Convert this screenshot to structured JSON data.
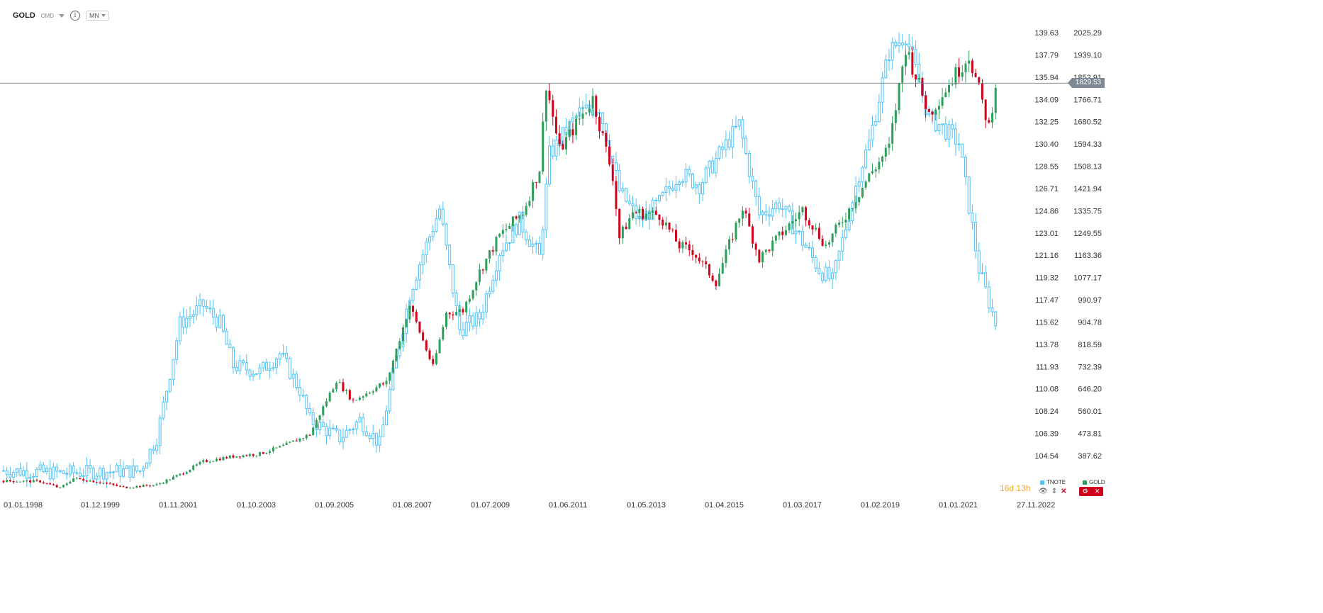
{
  "toolbar": {
    "symbol": "GOLD",
    "exchange": "CMD",
    "info_icon": "info-icon",
    "interval": "MN"
  },
  "price_tag": {
    "value": "1829.53"
  },
  "countdown": {
    "days": "16",
    "d": "d",
    "hours": "13",
    "h": "h"
  },
  "legends": {
    "tnote": {
      "label": "TNOTE",
      "color": "#4fc3f7"
    },
    "gold": {
      "label": "GOLD",
      "color": "#2e9e5b"
    }
  },
  "colors": {
    "up": "#2e9e5b",
    "down": "#d0021b",
    "tnote": "#4fc3f7",
    "gridline": "#7d8a96"
  },
  "chart_data": {
    "type": "candlestick",
    "x_tick_labels": [
      "01.01.1998",
      "01.12.1999",
      "01.11.2001",
      "01.10.2003",
      "01.09.2005",
      "01.08.2007",
      "01.07.2009",
      "01.06.2011",
      "01.05.2013",
      "01.04.2015",
      "01.03.2017",
      "01.02.2019",
      "01.01.2021",
      "27.11.2022"
    ],
    "left_axis": {
      "series": "TNOTE",
      "ticks": [
        "139.63",
        "137.79",
        "135.94",
        "134.09",
        "132.25",
        "130.40",
        "128.55",
        "126.71",
        "124.86",
        "123.01",
        "121.16",
        "119.32",
        "117.47",
        "115.62",
        "113.78",
        "111.93",
        "110.08",
        "108.24",
        "106.39",
        "104.54"
      ]
    },
    "right_axis": {
      "series": "GOLD",
      "ticks": [
        "2025.29",
        "1939.10",
        "1852.91",
        "1766.71",
        "1680.52",
        "1594.33",
        "1508.13",
        "1421.94",
        "1335.75",
        "1249.55",
        "1163.36",
        "1077.17",
        "990.97",
        "904.78",
        "818.59",
        "732.39",
        "646.20",
        "560.01",
        "473.81",
        "387.62"
      ]
    },
    "current_price": 1829.53,
    "series": [
      {
        "name": "GOLD",
        "axis": "right",
        "description": "monthly close levels",
        "points": [
          [
            "1998-01",
            290
          ],
          [
            "1998-12",
            288
          ],
          [
            "1999-06",
            262
          ],
          [
            "1999-10",
            300
          ],
          [
            "2000-06",
            285
          ],
          [
            "2001-01",
            265
          ],
          [
            "2001-06",
            270
          ],
          [
            "2001-11",
            275
          ],
          [
            "2002-06",
            315
          ],
          [
            "2003-01",
            365
          ],
          [
            "2003-10",
            385
          ],
          [
            "2004-06",
            395
          ],
          [
            "2005-01",
            425
          ],
          [
            "2005-09",
            470
          ],
          [
            "2006-05",
            680
          ],
          [
            "2006-10",
            600
          ],
          [
            "2007-06",
            660
          ],
          [
            "2007-08",
            670
          ],
          [
            "2008-03",
            970
          ],
          [
            "2008-10",
            730
          ],
          [
            "2009-02",
            940
          ],
          [
            "2009-07",
            950
          ],
          [
            "2009-12",
            1100
          ],
          [
            "2010-06",
            1240
          ],
          [
            "2011-01",
            1330
          ],
          [
            "2011-06",
            1500
          ],
          [
            "2011-08",
            1830
          ],
          [
            "2011-12",
            1570
          ],
          [
            "2012-10",
            1770
          ],
          [
            "2013-04",
            1470
          ],
          [
            "2013-06",
            1230
          ],
          [
            "2013-10",
            1330
          ],
          [
            "2014-06",
            1320
          ],
          [
            "2014-12",
            1200
          ],
          [
            "2015-04",
            1180
          ],
          [
            "2015-11",
            1060
          ],
          [
            "2016-07",
            1350
          ],
          [
            "2016-12",
            1150
          ],
          [
            "2017-09",
            1280
          ],
          [
            "2018-01",
            1340
          ],
          [
            "2018-08",
            1200
          ],
          [
            "2019-02",
            1320
          ],
          [
            "2019-09",
            1470
          ],
          [
            "2020-03",
            1580
          ],
          [
            "2020-08",
            1970
          ],
          [
            "2021-03",
            1710
          ],
          [
            "2021-06",
            1770
          ],
          [
            "2022-03",
            1940
          ],
          [
            "2022-09",
            1660
          ],
          [
            "2022-11",
            1829.53
          ]
        ]
      },
      {
        "name": "TNOTE",
        "axis": "left",
        "description": "monthly close levels",
        "points": [
          [
            "1998-01",
            103.3
          ],
          [
            "1999-06",
            103.1
          ],
          [
            "2001-06",
            103.3
          ],
          [
            "2001-11",
            106.0
          ],
          [
            "2002-06",
            115.5
          ],
          [
            "2003-01",
            117.0
          ],
          [
            "2003-06",
            115.5
          ],
          [
            "2003-10",
            112.0
          ],
          [
            "2004-06",
            111.5
          ],
          [
            "2004-12",
            113.0
          ],
          [
            "2005-06",
            110.0
          ],
          [
            "2005-09",
            107.5
          ],
          [
            "2006-06",
            106.0
          ],
          [
            "2006-12",
            107.5
          ],
          [
            "2007-06",
            105.5
          ],
          [
            "2007-08",
            108.5
          ],
          [
            "2008-03",
            118.0
          ],
          [
            "2008-06",
            120.5
          ],
          [
            "2008-12",
            125.0
          ],
          [
            "2009-06",
            115.0
          ],
          [
            "2009-12",
            116.0
          ],
          [
            "2010-06",
            121.5
          ],
          [
            "2010-12",
            124.0
          ],
          [
            "2011-06",
            121.0
          ],
          [
            "2011-09",
            129.5
          ],
          [
            "2012-06",
            133.0
          ],
          [
            "2012-12",
            133.5
          ],
          [
            "2013-06",
            126.5
          ],
          [
            "2013-12",
            124.0
          ],
          [
            "2014-06",
            125.5
          ],
          [
            "2014-12",
            128.0
          ],
          [
            "2015-06",
            127.0
          ],
          [
            "2016-06",
            132.0
          ],
          [
            "2016-12",
            124.5
          ],
          [
            "2017-06",
            125.5
          ],
          [
            "2018-06",
            120.0
          ],
          [
            "2018-10",
            119.0
          ],
          [
            "2019-06",
            128.0
          ],
          [
            "2019-09",
            130.5
          ],
          [
            "2020-03",
            138.0
          ],
          [
            "2020-08",
            139.5
          ],
          [
            "2021-03",
            132.5
          ],
          [
            "2021-06",
            132.0
          ],
          [
            "2021-12",
            130.5
          ],
          [
            "2022-06",
            120.0
          ],
          [
            "2022-11",
            115.5
          ]
        ]
      }
    ],
    "grid": false
  }
}
